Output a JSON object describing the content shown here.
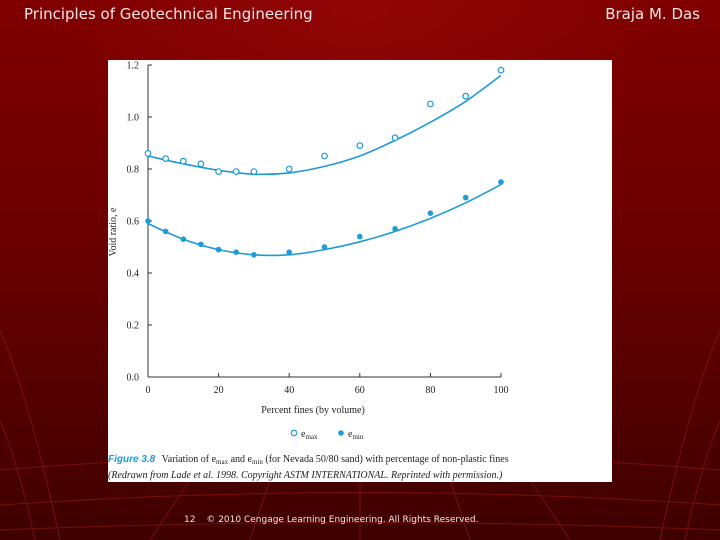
{
  "header": {
    "title": "Principles of Geotechnical Engineering",
    "author": "Braja M. Das"
  },
  "footer": {
    "page": "12",
    "copyright": "© 2010 Cengage Learning Engineering. All Rights Reserved."
  },
  "colors": {
    "background": "#7a0000",
    "series": "#1e9ad6",
    "caption_label": "#1e9ad6"
  },
  "figure": {
    "label": "Figure 3.8",
    "caption_line1": "Variation of e",
    "caption_sub_max": "max",
    "caption_and": " and e",
    "caption_sub_min": "min",
    "caption_rest": " (for Nevada 50/80 sand) with percentage of non-plastic fines",
    "caption_line2": "(Redrawn from Lade et al. 1998. Copyright ASTM INTERNATIONAL. Reprinted with permission.)"
  },
  "chart_data": {
    "type": "scatter",
    "xlabel": "Percent fines (by volume)",
    "ylabel": "Void ratio, e",
    "xlim": [
      0,
      100
    ],
    "ylim": [
      0,
      1.2
    ],
    "x_ticks": [
      "0",
      "20",
      "40",
      "60",
      "80",
      "100"
    ],
    "y_ticks": [
      "0.0",
      "0.2",
      "0.4",
      "0.6",
      "0.8",
      "1.0",
      "1.2"
    ],
    "legend": {
      "placement": "bottom",
      "max_label": "e",
      "max_sub": "max",
      "min_label": "e",
      "min_sub": "min"
    },
    "series": [
      {
        "name": "emax",
        "marker": "open-circle",
        "x": [
          0,
          5,
          10,
          15,
          20,
          25,
          30,
          40,
          50,
          60,
          70,
          80,
          90,
          100
        ],
        "y": [
          0.86,
          0.84,
          0.83,
          0.82,
          0.79,
          0.79,
          0.79,
          0.8,
          0.85,
          0.89,
          0.92,
          1.05,
          1.08,
          1.18
        ],
        "trend_x": [
          0,
          10,
          20,
          30,
          40,
          50,
          60,
          70,
          80,
          90,
          100
        ],
        "trend_y": [
          0.85,
          0.82,
          0.795,
          0.78,
          0.785,
          0.81,
          0.85,
          0.91,
          0.98,
          1.06,
          1.16
        ]
      },
      {
        "name": "emin",
        "marker": "filled-circle",
        "x": [
          0,
          5,
          10,
          15,
          20,
          25,
          30,
          40,
          50,
          60,
          70,
          80,
          90,
          100
        ],
        "y": [
          0.6,
          0.56,
          0.53,
          0.51,
          0.49,
          0.48,
          0.47,
          0.48,
          0.5,
          0.54,
          0.57,
          0.63,
          0.69,
          0.75
        ],
        "trend_x": [
          0,
          10,
          20,
          30,
          40,
          50,
          60,
          70,
          80,
          90,
          100
        ],
        "trend_y": [
          0.59,
          0.53,
          0.49,
          0.47,
          0.47,
          0.49,
          0.52,
          0.56,
          0.61,
          0.67,
          0.74
        ]
      }
    ]
  }
}
